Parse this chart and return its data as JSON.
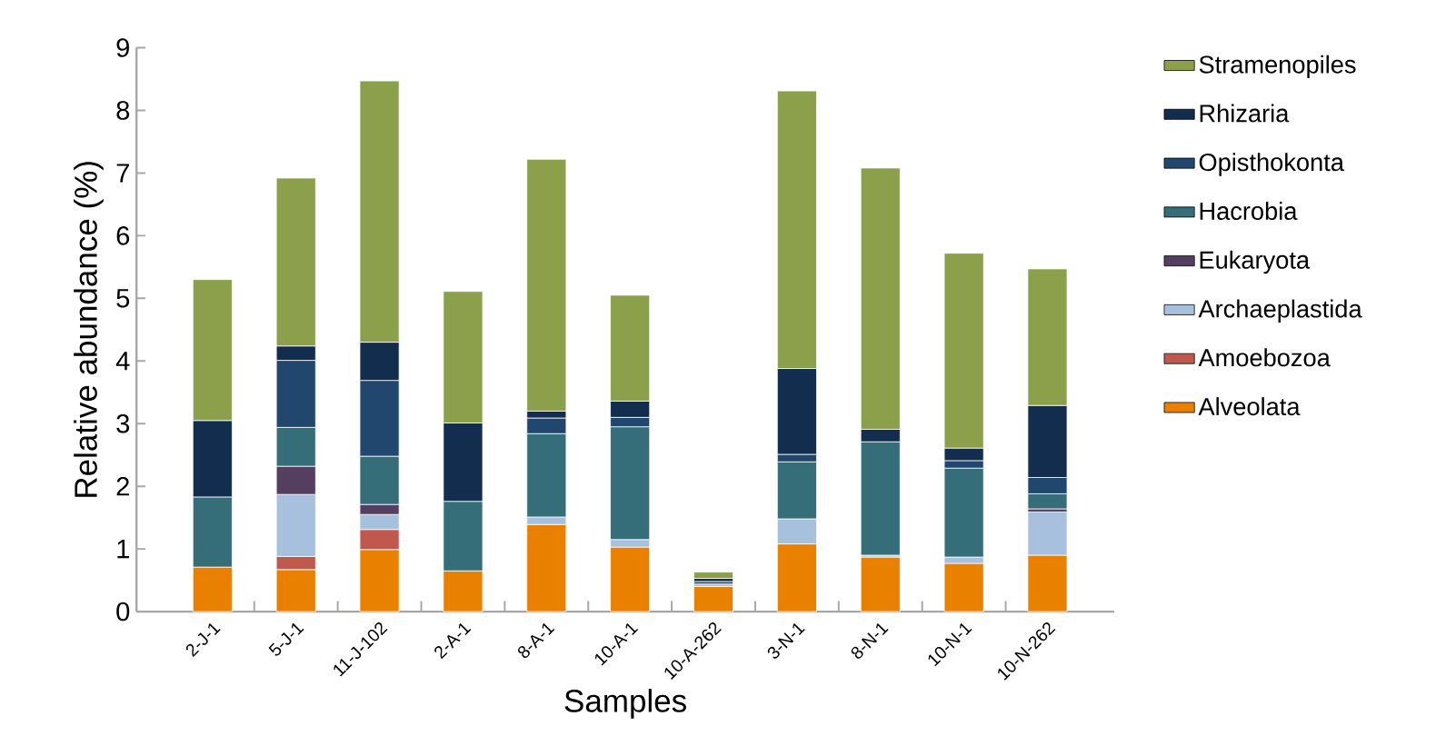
{
  "chart_data": {
    "type": "bar",
    "stacked": true,
    "xlabel": "Samples",
    "ylabel": "Relative abundance (%)",
    "categories": [
      "2-J-1",
      "5-J-1",
      "11-J-102",
      "2-A-1",
      "8-A-1",
      "10-A-1",
      "10-A-262",
      "3-N-1",
      "8-N-1",
      "10-N-1",
      "10-N-262"
    ],
    "series": [
      {
        "name": "Alveolata",
        "color": "#ea8000",
        "values": [
          0.71,
          0.67,
          0.99,
          0.65,
          1.39,
          1.03,
          0.4,
          1.08,
          0.87,
          0.77,
          0.9
        ]
      },
      {
        "name": "Amoebozoa",
        "color": "#c0584e",
        "values": [
          null,
          0.21,
          0.32,
          null,
          null,
          null,
          null,
          null,
          null,
          null,
          null
        ]
      },
      {
        "name": "Archaeplastida",
        "color": "#a6c0dd",
        "values": [
          null,
          0.99,
          0.24,
          null,
          0.12,
          0.12,
          0.04,
          0.4,
          0.03,
          0.1,
          0.69
        ]
      },
      {
        "name": "Eukaryota",
        "color": "#543f60",
        "values": [
          null,
          0.45,
          0.16,
          null,
          null,
          null,
          null,
          null,
          null,
          null,
          0.05
        ]
      },
      {
        "name": "Hacrobia",
        "color": "#356d78",
        "values": [
          1.12,
          0.62,
          0.77,
          1.11,
          1.33,
          1.8,
          null,
          0.91,
          1.81,
          1.42,
          0.24
        ]
      },
      {
        "name": "Opisthokonta",
        "color": "#21476f",
        "values": [
          null,
          1.07,
          1.21,
          null,
          0.25,
          0.15,
          0.04,
          0.12,
          null,
          0.12,
          0.26
        ]
      },
      {
        "name": "Rhizaria",
        "color": "#122d4d",
        "values": [
          1.22,
          0.23,
          0.61,
          1.25,
          0.11,
          0.26,
          0.05,
          1.37,
          0.2,
          0.2,
          1.15
        ]
      },
      {
        "name": "Stramenopiles",
        "color": "#8c9f4a",
        "values": [
          2.25,
          2.68,
          4.17,
          2.1,
          4.02,
          1.69,
          0.1,
          4.43,
          4.17,
          3.11,
          2.18
        ]
      }
    ],
    "ylim": [
      0,
      9
    ],
    "yticks": [
      0,
      1,
      2,
      3,
      4,
      5,
      6,
      7,
      8,
      9
    ],
    "legend": "right"
  }
}
